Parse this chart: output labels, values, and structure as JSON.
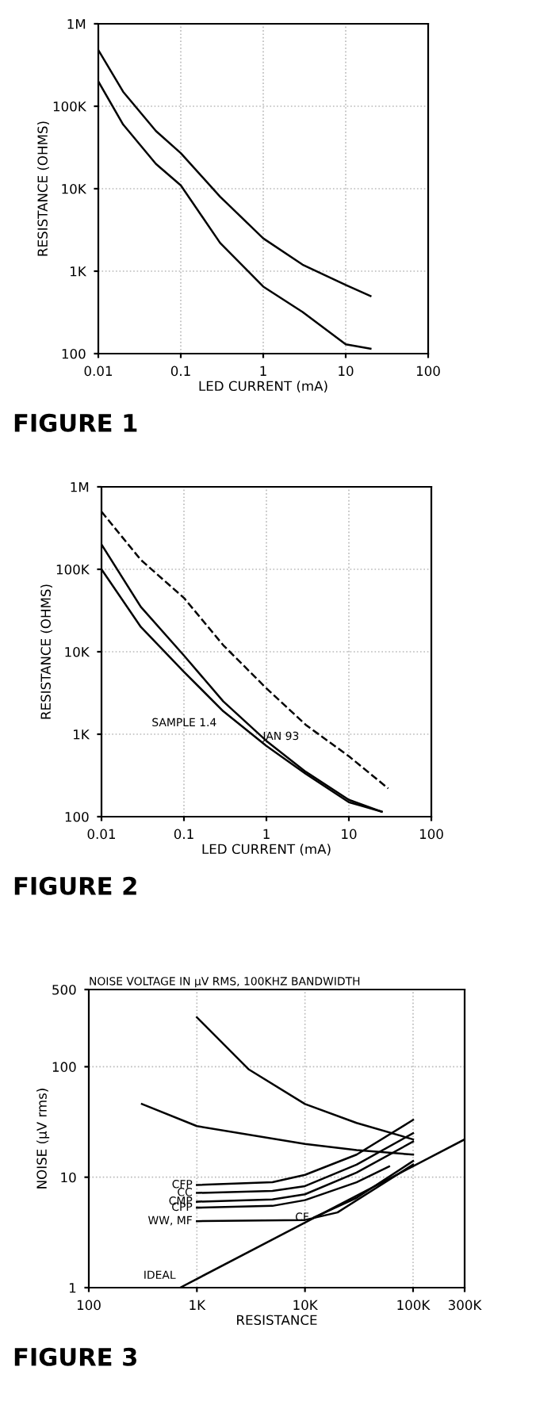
{
  "chart_data": [
    {
      "type": "line",
      "title": "FIGURE 1",
      "xlabel": "LED CURRENT (mA)",
      "ylabel": "RESISTANCE (OHMS)",
      "log": "xy",
      "grid": true,
      "line_style": "solid",
      "xlim": [
        0.01,
        100
      ],
      "ylim": [
        100,
        1000000
      ],
      "xticks": [
        0.01,
        0.1,
        1,
        10,
        100
      ],
      "yticks": [
        100,
        {
          "value": 1000,
          "label": "1K"
        },
        {
          "value": 10000,
          "label": "10K"
        },
        {
          "value": 100000,
          "label": "100K"
        },
        {
          "value": 1000000,
          "label": "1M"
        }
      ],
      "series": [
        {
          "color": "#000000",
          "x": [
            0.01,
            0.02,
            0.05,
            0.1,
            0.3,
            1,
            3,
            10,
            20
          ],
          "values": [
            480000,
            150000,
            50000,
            27000,
            8000,
            2500,
            1200,
            680,
            500
          ]
        },
        {
          "color": "#000000",
          "x": [
            0.01,
            0.02,
            0.05,
            0.1,
            0.3,
            1,
            3,
            10,
            20
          ],
          "values": [
            200000,
            60000,
            20000,
            11000,
            2200,
            650,
            320,
            130,
            115
          ]
        }
      ]
    },
    {
      "type": "line",
      "title": "FIGURE 2",
      "xlabel": "LED CURRENT (mA)",
      "ylabel": "RESISTANCE (OHMS)",
      "log": "xy",
      "grid": true,
      "xlim": [
        0.01,
        100
      ],
      "ylim": [
        100,
        1000000
      ],
      "xticks": [
        0.01,
        0.1,
        1,
        10,
        100
      ],
      "yticks": [
        100,
        {
          "value": 1000,
          "label": "1K"
        },
        {
          "value": 10000,
          "label": "10K"
        },
        {
          "value": 100000,
          "label": "100K"
        },
        {
          "value": 1000000,
          "label": "1M"
        }
      ],
      "annotations": [
        {
          "text": "SAMPLE 1.4",
          "x": 0.3,
          "y": 1900
        },
        {
          "text": "JAN 93",
          "x": 3,
          "y": 1300
        }
      ],
      "series": [
        {
          "color": "#000000",
          "line_style": "dashed",
          "x": [
            0.01,
            0.03,
            0.1,
            0.3,
            1,
            3,
            10,
            30
          ],
          "values": [
            500000,
            130000,
            45000,
            12000,
            3600,
            1300,
            540,
            220
          ]
        },
        {
          "color": "#000000",
          "line_style": "solid",
          "x": [
            0.01,
            0.03,
            0.1,
            0.3,
            1,
            3,
            10,
            25
          ],
          "values": [
            200000,
            35000,
            9000,
            2500,
            830,
            350,
            160,
            115
          ]
        },
        {
          "color": "#000000",
          "line_style": "solid",
          "x": [
            0.01,
            0.03,
            0.1,
            0.3,
            1,
            3,
            10,
            25
          ],
          "values": [
            100000,
            20000,
            5700,
            1900,
            720,
            330,
            150,
            115
          ]
        }
      ]
    },
    {
      "type": "line",
      "title": "FIGURE 3",
      "subtitle": "NOISE VOLTAGE IN μV RMS, 100KHZ BANDWIDTH",
      "xlabel": "RESISTANCE",
      "ylabel": "NOISE (μV rms)",
      "log": "xy",
      "grid": true,
      "line_style": "solid",
      "xlim": [
        100,
        300000
      ],
      "ylim": [
        1,
        500
      ],
      "xticks": [
        100,
        {
          "value": 1000,
          "label": "1K"
        },
        {
          "value": 10000,
          "label": "10K"
        },
        {
          "value": 100000,
          "label": "100K"
        },
        {
          "value": 300000,
          "label": "300K"
        }
      ],
      "yticks": [
        1,
        10,
        100,
        500
      ],
      "series": [
        {
          "color": "#000000",
          "x": [
            1000,
            3000,
            10000,
            30000,
            100000
          ],
          "values": [
            280,
            95,
            46,
            31,
            22
          ]
        },
        {
          "color": "#000000",
          "x": [
            310,
            1000,
            10000,
            30000,
            100000
          ],
          "values": [
            46,
            29,
            20,
            17.6,
            16
          ]
        },
        {
          "name": "CFP",
          "color": "#000000",
          "x": [
            1000,
            5000,
            10000,
            30000,
            100000
          ],
          "values": [
            8.5,
            9,
            10.5,
            16,
            33
          ]
        },
        {
          "name": "CC",
          "color": "#000000",
          "x": [
            1000,
            5000,
            10000,
            30000,
            100000
          ],
          "values": [
            7.2,
            7.5,
            8.3,
            13,
            25
          ]
        },
        {
          "name": "CMP",
          "color": "#000000",
          "x": [
            1000,
            5000,
            10000,
            30000,
            100000
          ],
          "values": [
            6,
            6.3,
            7,
            11,
            21
          ]
        },
        {
          "name": "CPP",
          "color": "#000000",
          "x": [
            1000,
            5000,
            10000,
            30000,
            60000
          ],
          "values": [
            5.3,
            5.5,
            6.2,
            9,
            12.5
          ]
        },
        {
          "name": "WW, MF",
          "color": "#000000",
          "x": [
            1000,
            10000,
            20000,
            100000
          ],
          "values": [
            4,
            4.1,
            4.8,
            13
          ]
        },
        {
          "name": "CF",
          "color": "#000000",
          "x": [
            12000,
            30000,
            100000
          ],
          "values": [
            4.3,
            6.5,
            14
          ]
        },
        {
          "name": "IDEAL",
          "color": "#000000",
          "x": [
            700,
            300000
          ],
          "values": [
            1,
            22
          ]
        }
      ]
    }
  ]
}
